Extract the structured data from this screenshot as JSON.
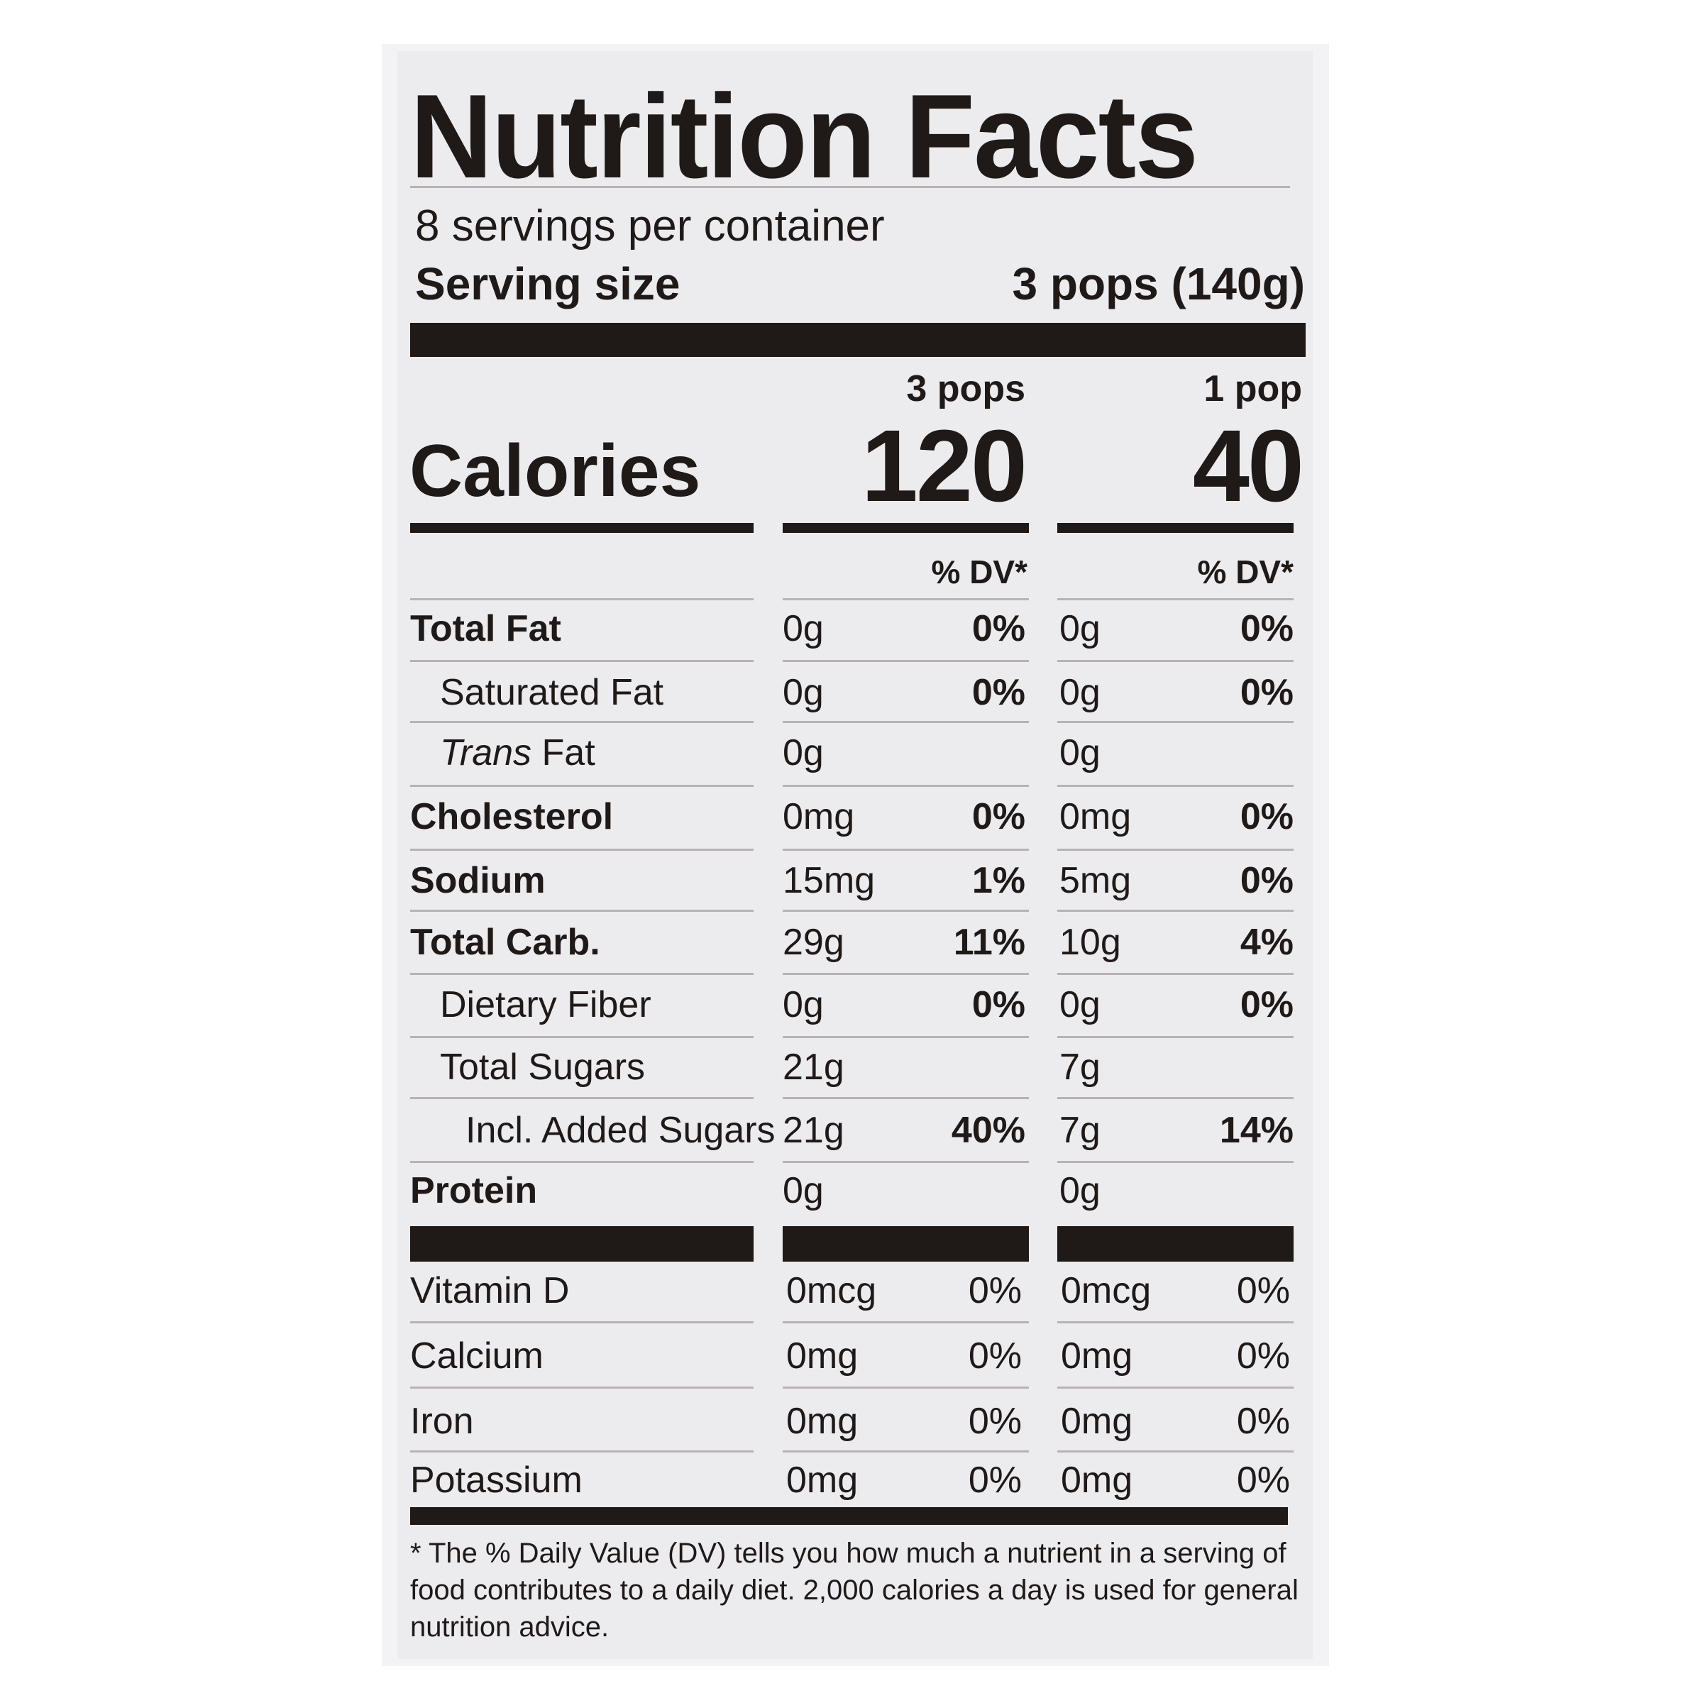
{
  "label": {
    "title": "Nutrition Facts",
    "servings_per_container": "8 servings per container",
    "serving_size_label": "Serving size",
    "serving_size_value": "3 pops (140g)",
    "col1_header": "3 pops",
    "col2_header": "1 pop",
    "calories_label": "Calories",
    "calories_col1": "120",
    "calories_col2": "40",
    "dv_header": "% DV*",
    "footnote": "* The % Daily Value (DV) tells you how much a nutrient in a serving of food contributes to a daily diet. 2,000 calories a day is used for general nutrition advice."
  },
  "nutrients": [
    {
      "name": "Total Fat",
      "amt1": "0g",
      "pct1": "0%",
      "amt2": "0g",
      "pct2": "0%"
    },
    {
      "name": "Saturated Fat",
      "amt1": "0g",
      "pct1": "0%",
      "amt2": "0g",
      "pct2": "0%"
    },
    {
      "name_italic": "Trans",
      "name_rest": " Fat",
      "amt1": "0g",
      "pct1": "",
      "amt2": "0g",
      "pct2": ""
    },
    {
      "name": "Cholesterol",
      "amt1": "0mg",
      "pct1": "0%",
      "amt2": "0mg",
      "pct2": "0%"
    },
    {
      "name": "Sodium",
      "amt1": "15mg",
      "pct1": "1%",
      "amt2": "5mg",
      "pct2": "0%"
    },
    {
      "name": "Total Carb.",
      "amt1": "29g",
      "pct1": "11%",
      "amt2": "10g",
      "pct2": "4%"
    },
    {
      "name": "Dietary Fiber",
      "amt1": "0g",
      "pct1": "0%",
      "amt2": "0g",
      "pct2": "0%"
    },
    {
      "name": "Total Sugars",
      "amt1": "21g",
      "pct1": "",
      "amt2": "7g",
      "pct2": ""
    },
    {
      "name": "Incl. Added Sugars",
      "amt1": "21g",
      "pct1": "40%",
      "amt2": "7g",
      "pct2": "14%"
    },
    {
      "name": "Protein",
      "amt1": "0g",
      "pct1": "",
      "amt2": "0g",
      "pct2": ""
    }
  ],
  "vitamins": [
    {
      "name": "Vitamin D",
      "amt1": "0mcg",
      "pct1": "0%",
      "amt2": "0mcg",
      "pct2": "0%"
    },
    {
      "name": "Calcium",
      "amt1": "0mg",
      "pct1": "0%",
      "amt2": "0mg",
      "pct2": "0%"
    },
    {
      "name": "Iron",
      "amt1": "0mg",
      "pct1": "0%",
      "amt2": "0mg",
      "pct2": "0%"
    },
    {
      "name": "Potassium",
      "amt1": "0mg",
      "pct1": "0%",
      "amt2": "0mg",
      "pct2": "0%"
    }
  ]
}
